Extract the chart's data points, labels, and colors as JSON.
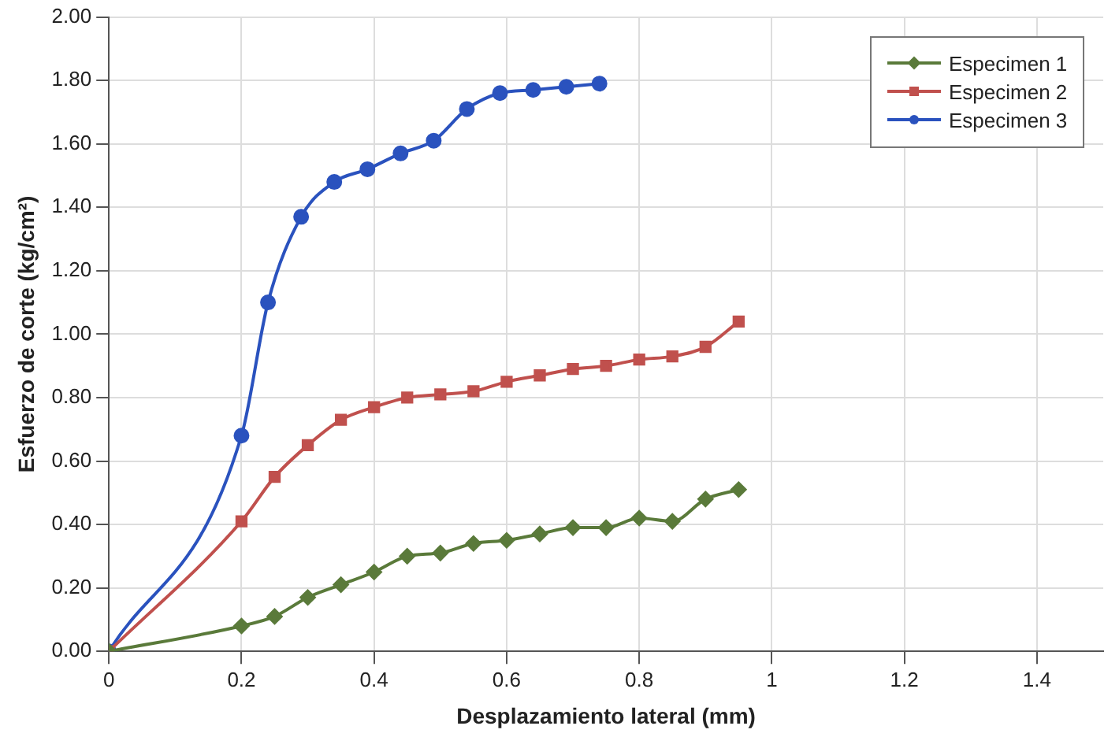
{
  "chart_data": {
    "type": "line",
    "xlabel": "Desplazamiento lateral (mm)",
    "ylabel": "Esfuerzo de corte (kg/cm²)",
    "xlim": [
      0,
      1.5
    ],
    "xticks": [
      0,
      0.2,
      0.4,
      0.6,
      0.8,
      1,
      1.2,
      1.4
    ],
    "ylim": [
      0,
      2
    ],
    "yticks": [
      {
        "value": 0,
        "label": "0.00"
      },
      {
        "value": 0.2,
        "label": "0.20"
      },
      {
        "value": 0.4,
        "label": "0.40"
      },
      {
        "value": 0.6,
        "label": "0.60"
      },
      {
        "value": 0.8,
        "label": "0.80"
      },
      {
        "value": 1,
        "label": "1.00"
      },
      {
        "value": 1.2,
        "label": "1.20"
      },
      {
        "value": 1.4,
        "label": "1.40"
      },
      {
        "value": 1.6,
        "label": "1.60"
      },
      {
        "value": 1.8,
        "label": "1.80"
      },
      {
        "value": 2,
        "label": "2.00"
      }
    ],
    "grid": true,
    "legend": "top right",
    "line_style": "solid",
    "series": [
      {
        "name": "Especimen 1",
        "color": "#5a7a3a",
        "marker": "diamond",
        "x": [
          0,
          0.2,
          0.25,
          0.3,
          0.35,
          0.4,
          0.45,
          0.5,
          0.55,
          0.6,
          0.65,
          0.7,
          0.75,
          0.8,
          0.85,
          0.9,
          0.95
        ],
        "values": [
          0,
          0.08,
          0.11,
          0.17,
          0.21,
          0.25,
          0.3,
          0.31,
          0.34,
          0.35,
          0.37,
          0.39,
          0.39,
          0.42,
          0.41,
          0.48,
          0.51
        ]
      },
      {
        "name": "Especimen 2",
        "color": "#c0504d",
        "marker": "square",
        "x": [
          0,
          0.2,
          0.25,
          0.3,
          0.35,
          0.4,
          0.45,
          0.5,
          0.55,
          0.6,
          0.65,
          0.7,
          0.75,
          0.8,
          0.85,
          0.9,
          0.95
        ],
        "values": [
          0,
          0.41,
          0.55,
          0.65,
          0.73,
          0.77,
          0.8,
          0.81,
          0.82,
          0.85,
          0.87,
          0.89,
          0.9,
          0.92,
          0.93,
          0.96,
          1.04
        ]
      },
      {
        "name": "Especimen 3",
        "color": "#2a52be",
        "marker": "circle",
        "x": [
          0,
          0.2,
          0.24,
          0.29,
          0.34,
          0.39,
          0.44,
          0.49,
          0.54,
          0.59,
          0.64,
          0.69,
          0.74
        ],
        "values": [
          0,
          0.68,
          1.1,
          1.37,
          1.48,
          1.52,
          1.57,
          1.61,
          1.71,
          1.76,
          1.77,
          1.78,
          1.79
        ]
      }
    ]
  }
}
